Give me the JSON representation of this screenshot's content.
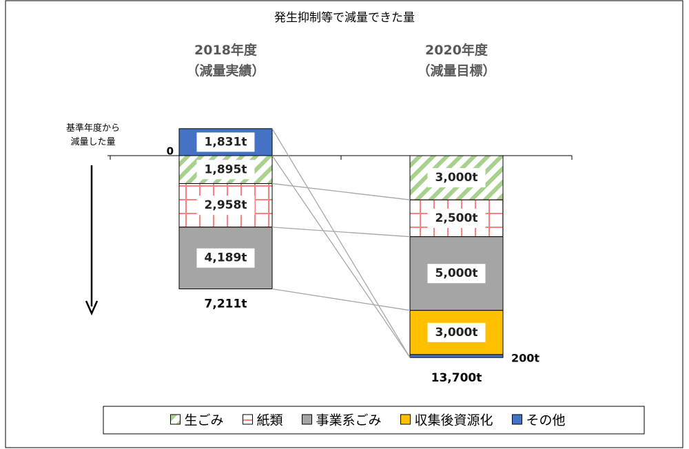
{
  "chart_data": {
    "type": "stacked-bar",
    "title": "発生抑制等で減量できた量",
    "axis_note": "基準年度から\n減量した量",
    "categories": [
      "2018年度\n（減量実績）",
      "2020年度\n（減量目標）"
    ],
    "series": [
      {
        "name": "生ごみ",
        "color": "#a9d18e",
        "pattern": "diagonal",
        "values": [
          1895,
          3000
        ],
        "value_labels": [
          "1,895t",
          "3,000t"
        ]
      },
      {
        "name": "紙類",
        "color": "#ff8080",
        "pattern": "grid",
        "values": [
          2958,
          2500
        ],
        "value_labels": [
          "2,958t",
          "2,500t"
        ]
      },
      {
        "name": "事業系ごみ",
        "color": "#a5a5a5",
        "pattern": "solid",
        "values": [
          4189,
          5000
        ],
        "value_labels": [
          "4,189t",
          "5,000t"
        ]
      },
      {
        "name": "収集後資源化",
        "color": "#ffc000",
        "pattern": "solid",
        "values": [
          null,
          3000
        ],
        "value_labels": [
          null,
          "3,000t"
        ]
      },
      {
        "name": "その他",
        "color": "#4472c4",
        "pattern": "solid",
        "values": [
          -1831,
          200
        ],
        "value_labels": [
          "1,831t",
          "200t"
        ]
      }
    ],
    "totals": [
      "7,211t",
      "13,700t"
    ],
    "ylim": [
      -3000,
      14500
    ],
    "yticks": [
      0
    ],
    "y_inverted": true,
    "legend": "bottom"
  }
}
